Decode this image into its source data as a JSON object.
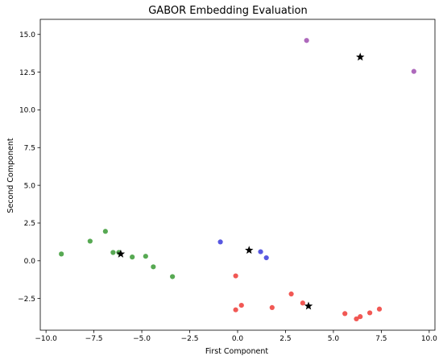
{
  "chart_data": {
    "type": "scatter",
    "title": "GABOR  Embedding  Evaluation",
    "xlabel": "First Component",
    "ylabel": "Second Component",
    "xlim": [
      -10.3,
      10.3
    ],
    "ylim": [
      -4.6,
      16.0
    ],
    "xticks": [
      -10.0,
      -7.5,
      -5.0,
      -2.5,
      0.0,
      2.5,
      5.0,
      7.5,
      10.0
    ],
    "xtick_labels": [
      "−10.0",
      "−7.5",
      "−5.0",
      "−2.5",
      "0.0",
      "2.5",
      "5.0",
      "7.5",
      "10.0"
    ],
    "yticks": [
      -2.5,
      0.0,
      2.5,
      5.0,
      7.5,
      10.0,
      12.5,
      15.0
    ],
    "ytick_labels": [
      "−2.5",
      "0.0",
      "2.5",
      "5.0",
      "7.5",
      "10.0",
      "12.5",
      "15.0"
    ],
    "grid": false,
    "series": [
      {
        "color": "#3a9a35",
        "points": [
          [
            -9.2,
            0.45
          ],
          [
            -7.7,
            1.3
          ],
          [
            -6.9,
            1.95
          ],
          [
            -6.5,
            0.55
          ],
          [
            -6.2,
            0.55
          ],
          [
            -5.5,
            0.25
          ],
          [
            -4.8,
            0.3
          ],
          [
            -4.4,
            -0.4
          ],
          [
            -3.4,
            -1.05
          ]
        ]
      },
      {
        "color": "#3b3bdc",
        "points": [
          [
            -0.9,
            1.25
          ],
          [
            1.2,
            0.6
          ],
          [
            1.5,
            0.2
          ]
        ]
      },
      {
        "color": "#ef3b36",
        "points": [
          [
            -0.1,
            -1.0
          ],
          [
            -0.1,
            -3.25
          ],
          [
            0.2,
            -2.95
          ],
          [
            1.8,
            -3.1
          ],
          [
            2.8,
            -2.2
          ],
          [
            3.4,
            -2.8
          ],
          [
            5.6,
            -3.5
          ],
          [
            6.2,
            -3.85
          ],
          [
            6.4,
            -3.7
          ],
          [
            6.9,
            -3.45
          ],
          [
            7.4,
            -3.2
          ]
        ]
      },
      {
        "color": "#a04fb0",
        "points": [
          [
            3.6,
            14.6
          ],
          [
            9.2,
            12.55
          ]
        ]
      }
    ],
    "centroids": [
      [
        -6.1,
        0.45
      ],
      [
        0.6,
        0.7
      ],
      [
        3.7,
        -3.0
      ],
      [
        6.4,
        13.5
      ]
    ]
  }
}
